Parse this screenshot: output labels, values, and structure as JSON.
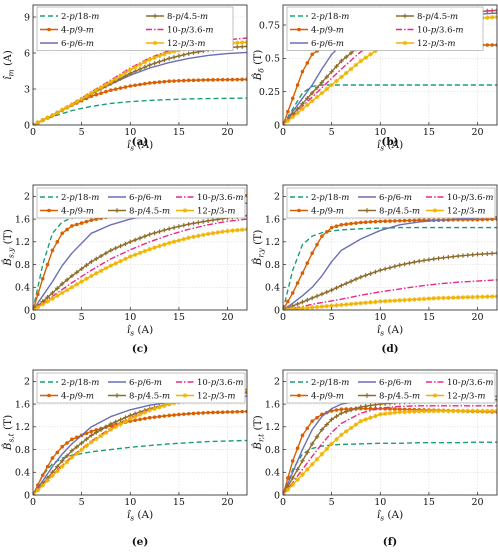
{
  "figure": {
    "colors": {
      "c2": "#1a9e77",
      "c4": "#d95f02",
      "c6": "#6a6fb8",
      "c8": "#8c6d2c",
      "c10": "#e7298a",
      "c12": "#f0b400"
    },
    "series_styles": {
      "2-p/18-m": {
        "color": "#1a9e77",
        "dash": "dashed",
        "marker": "none"
      },
      "4-p/9-m": {
        "color": "#d95f02",
        "dash": "solid",
        "marker": "dot"
      },
      "6-p/6-m": {
        "color": "#6a6fb8",
        "dash": "solid",
        "marker": "none"
      },
      "8-p/4.5-m": {
        "color": "#8c6d2c",
        "dash": "solid",
        "marker": "plus"
      },
      "10-p/3.6-m": {
        "color": "#e7298a",
        "dash": "dashdot",
        "marker": "none"
      },
      "12-p/3-m": {
        "color": "#f0b400",
        "dash": "solid",
        "marker": "star"
      }
    }
  },
  "chart_data": [
    {
      "panel": "(a)",
      "type": "line",
      "xlabel": "î_s (A)",
      "ylabel": "î_m (A)",
      "xlim": [
        0,
        22
      ],
      "ylim": [
        0,
        10
      ],
      "xticks": [
        "0",
        "5",
        "10",
        "15",
        "20"
      ],
      "yticks": [
        "0",
        "3",
        "6",
        "9"
      ],
      "ytick_values": [
        0,
        3,
        6,
        9
      ],
      "grid": true,
      "legend": {
        "position": "top",
        "columns": 2,
        "entries": [
          "2-p/18-m",
          "8-p/4.5-m",
          "4-p/9-m",
          "10-p/3.6-m",
          "6-p/6-m",
          "12-p/3-m"
        ]
      },
      "x": [
        0,
        2,
        4,
        6,
        8,
        10,
        12,
        14,
        16,
        18,
        20,
        22
      ],
      "series": [
        {
          "name": "2-p/18-m",
          "values": [
            0,
            0.7,
            1.2,
            1.55,
            1.8,
            1.95,
            2.05,
            2.12,
            2.17,
            2.2,
            2.22,
            2.24
          ]
        },
        {
          "name": "4-p/9-m",
          "values": [
            0,
            0.8,
            1.65,
            2.4,
            2.9,
            3.25,
            3.5,
            3.65,
            3.72,
            3.76,
            3.78,
            3.8
          ]
        },
        {
          "name": "6-p/6-m",
          "values": [
            0,
            0.8,
            1.7,
            2.6,
            3.4,
            4.15,
            4.75,
            5.2,
            5.55,
            5.8,
            5.95,
            6.05
          ]
        },
        {
          "name": "8-p/4.5-m",
          "values": [
            0,
            0.8,
            1.7,
            2.6,
            3.45,
            4.3,
            5.0,
            5.55,
            5.95,
            6.25,
            6.45,
            6.55
          ]
        },
        {
          "name": "10-p/3.6-m",
          "values": [
            0,
            0.8,
            1.75,
            2.75,
            3.75,
            4.75,
            5.6,
            6.2,
            6.6,
            6.9,
            7.1,
            7.25
          ]
        },
        {
          "name": "12-p/3-m",
          "values": [
            0,
            0.8,
            1.7,
            2.65,
            3.6,
            4.6,
            5.45,
            6.05,
            6.4,
            6.65,
            6.8,
            6.9
          ]
        }
      ]
    },
    {
      "panel": "(b)",
      "type": "line",
      "xlabel": "î_s (A)",
      "ylabel": "B̂_δ (T)",
      "xlim": [
        0,
        22
      ],
      "ylim": [
        0,
        0.9
      ],
      "xticks": [
        "0",
        "5",
        "10",
        "15",
        "20"
      ],
      "yticks": [
        "0",
        "0.25",
        "0.5",
        "0.75"
      ],
      "ytick_values": [
        0,
        0.25,
        0.5,
        0.75
      ],
      "grid": true,
      "legend": {
        "position": "top",
        "columns": 2,
        "entries": [
          "2-p/18-m",
          "8-p/4.5-m",
          "4-p/9-m",
          "10-p/3.6-m",
          "6-p/6-m",
          "12-p/3-m"
        ]
      },
      "x": [
        0,
        1,
        2,
        3,
        4,
        5,
        6,
        8,
        10,
        12,
        14,
        16,
        18,
        20,
        22
      ],
      "series": [
        {
          "name": "2-p/18-m",
          "values": [
            0,
            0.12,
            0.24,
            0.29,
            0.3,
            0.3,
            0.3,
            0.3,
            0.3,
            0.3,
            0.3,
            0.3,
            0.3,
            0.3,
            0.3
          ]
        },
        {
          "name": "4-p/9-m",
          "values": [
            0,
            0.2,
            0.4,
            0.53,
            0.58,
            0.595,
            0.6,
            0.6,
            0.6,
            0.6,
            0.6,
            0.6,
            0.6,
            0.6,
            0.6
          ]
        },
        {
          "name": "6-p/6-m",
          "values": [
            0,
            0.1,
            0.2,
            0.3,
            0.42,
            0.53,
            0.6,
            0.68,
            0.72,
            0.75,
            0.78,
            0.8,
            0.82,
            0.83,
            0.84
          ]
        },
        {
          "name": "8-p/4.5-m",
          "values": [
            0,
            0.08,
            0.16,
            0.24,
            0.32,
            0.4,
            0.48,
            0.6,
            0.68,
            0.73,
            0.77,
            0.8,
            0.83,
            0.85,
            0.86
          ]
        },
        {
          "name": "10-p/3.6-m",
          "values": [
            0,
            0.07,
            0.14,
            0.21,
            0.28,
            0.35,
            0.42,
            0.55,
            0.65,
            0.72,
            0.77,
            0.8,
            0.83,
            0.85,
            0.86
          ]
        },
        {
          "name": "12-p/3-m",
          "values": [
            0,
            0.06,
            0.12,
            0.18,
            0.24,
            0.3,
            0.36,
            0.48,
            0.58,
            0.65,
            0.71,
            0.75,
            0.78,
            0.8,
            0.81
          ]
        }
      ]
    },
    {
      "panel": "(c)",
      "type": "line",
      "xlabel": "î_s (A)",
      "ylabel": "B̂_s,y (T)",
      "xlim": [
        0,
        22
      ],
      "ylim": [
        0,
        2.2
      ],
      "xticks": [
        "0",
        "5",
        "10",
        "15",
        "20"
      ],
      "yticks": [
        "0",
        "0.4",
        "0.8",
        "1.2",
        "1.6",
        "2"
      ],
      "ytick_values": [
        0,
        0.4,
        0.8,
        1.2,
        1.6,
        2
      ],
      "grid": true,
      "legend": {
        "position": "top",
        "columns": 3,
        "entries": [
          "2-p/18-m",
          "6-p/6-m",
          "10-p/3.6-m",
          "4-p/9-m",
          "8-p/4.5-m",
          "12-p/3-m"
        ]
      },
      "x": [
        0,
        1,
        2,
        3,
        4,
        6,
        8,
        10,
        12,
        14,
        16,
        18,
        20,
        22
      ],
      "series": [
        {
          "name": "2-p/18-m",
          "values": [
            0,
            0.8,
            1.35,
            1.55,
            1.62,
            1.7,
            1.76,
            1.82,
            1.87,
            1.91,
            1.95,
            1.98,
            2.01,
            2.03
          ]
        },
        {
          "name": "4-p/9-m",
          "values": [
            0,
            0.55,
            1.05,
            1.35,
            1.48,
            1.58,
            1.65,
            1.72,
            1.78,
            1.84,
            1.89,
            1.93,
            1.97,
            2.01
          ]
        },
        {
          "name": "6-p/6-m",
          "values": [
            0,
            0.25,
            0.5,
            0.78,
            1.0,
            1.35,
            1.5,
            1.6,
            1.67,
            1.73,
            1.78,
            1.82,
            1.85,
            1.88
          ]
        },
        {
          "name": "8-p/4.5-m",
          "values": [
            0,
            0.15,
            0.3,
            0.46,
            0.6,
            0.85,
            1.05,
            1.2,
            1.33,
            1.43,
            1.51,
            1.57,
            1.62,
            1.66
          ]
        },
        {
          "name": "10-p/3.6-m",
          "values": [
            0,
            0.12,
            0.24,
            0.36,
            0.48,
            0.7,
            0.9,
            1.06,
            1.2,
            1.32,
            1.42,
            1.5,
            1.56,
            1.6
          ]
        },
        {
          "name": "12-p/3-m",
          "values": [
            0,
            0.1,
            0.2,
            0.3,
            0.4,
            0.6,
            0.78,
            0.94,
            1.07,
            1.18,
            1.27,
            1.34,
            1.39,
            1.42
          ]
        }
      ]
    },
    {
      "panel": "(d)",
      "type": "line",
      "xlabel": "î_s (A)",
      "ylabel": "B̂_r,y (T)",
      "xlim": [
        0,
        22
      ],
      "ylim": [
        0,
        2.2
      ],
      "xticks": [
        "0",
        "5",
        "10",
        "15",
        "20"
      ],
      "yticks": [
        "0",
        "0.4",
        "0.8",
        "1.2",
        "1.6",
        "2"
      ],
      "ytick_values": [
        0,
        0.4,
        0.8,
        1.2,
        1.6,
        2
      ],
      "grid": true,
      "legend": {
        "position": "top",
        "columns": 3,
        "entries": [
          "2-p/18-m",
          "6-p/6-m",
          "10-p/3.6-m",
          "4-p/9-m",
          "8-p/4.5-m",
          "12-p/3-m"
        ]
      },
      "x": [
        0,
        1,
        2,
        3,
        4,
        5,
        6,
        8,
        10,
        12,
        14,
        16,
        18,
        20,
        22
      ],
      "series": [
        {
          "name": "2-p/18-m",
          "values": [
            0,
            0.7,
            1.15,
            1.3,
            1.36,
            1.39,
            1.41,
            1.43,
            1.44,
            1.45,
            1.45,
            1.45,
            1.45,
            1.45,
            1.45
          ]
        },
        {
          "name": "4-p/9-m",
          "values": [
            0,
            0.3,
            0.65,
            1.0,
            1.3,
            1.45,
            1.5,
            1.54,
            1.56,
            1.57,
            1.58,
            1.58,
            1.59,
            1.59,
            1.6
          ]
        },
        {
          "name": "6-p/6-m",
          "values": [
            0,
            0.12,
            0.25,
            0.4,
            0.6,
            0.85,
            1.05,
            1.25,
            1.4,
            1.5,
            1.55,
            1.58,
            1.6,
            1.62,
            1.64
          ]
        },
        {
          "name": "8-p/4.5-m",
          "values": [
            0,
            0.07,
            0.14,
            0.21,
            0.28,
            0.35,
            0.43,
            0.58,
            0.7,
            0.79,
            0.86,
            0.91,
            0.95,
            0.98,
            1.0
          ]
        },
        {
          "name": "10-p/3.6-m",
          "values": [
            0,
            0.03,
            0.06,
            0.1,
            0.13,
            0.16,
            0.19,
            0.26,
            0.32,
            0.37,
            0.42,
            0.46,
            0.49,
            0.51,
            0.53
          ]
        },
        {
          "name": "12-p/3-m",
          "values": [
            0,
            0.015,
            0.03,
            0.045,
            0.06,
            0.075,
            0.09,
            0.12,
            0.15,
            0.17,
            0.19,
            0.21,
            0.22,
            0.23,
            0.24
          ]
        }
      ]
    },
    {
      "panel": "(e)",
      "type": "line",
      "xlabel": "î_s (A)",
      "ylabel": "B̂_s,t (T)",
      "xlim": [
        0,
        22
      ],
      "ylim": [
        0,
        2.2
      ],
      "xticks": [
        "0",
        "5",
        "10",
        "15",
        "20"
      ],
      "yticks": [
        "0",
        "0.4",
        "0.8",
        "1.2",
        "1.6",
        "2"
      ],
      "ytick_values": [
        0,
        0.4,
        0.8,
        1.2,
        1.6,
        2
      ],
      "grid": true,
      "legend": {
        "position": "top",
        "columns": 3,
        "entries": [
          "2-p/18-m",
          "6-p/6-m",
          "10-p/3.6-m",
          "4-p/9-m",
          "8-p/4.5-m",
          "12-p/3-m"
        ]
      },
      "x": [
        0,
        1,
        2,
        3,
        4,
        6,
        8,
        10,
        12,
        14,
        16,
        18,
        20,
        22
      ],
      "series": [
        {
          "name": "2-p/18-m",
          "values": [
            0,
            0.35,
            0.55,
            0.65,
            0.7,
            0.76,
            0.8,
            0.84,
            0.87,
            0.9,
            0.92,
            0.94,
            0.95,
            0.96
          ]
        },
        {
          "name": "4-p/9-m",
          "values": [
            0,
            0.35,
            0.65,
            0.85,
            0.98,
            1.12,
            1.22,
            1.3,
            1.36,
            1.4,
            1.43,
            1.45,
            1.46,
            1.47
          ]
        },
        {
          "name": "6-p/6-m",
          "values": [
            0,
            0.25,
            0.5,
            0.72,
            0.9,
            1.2,
            1.38,
            1.5,
            1.58,
            1.63,
            1.67,
            1.7,
            1.72,
            1.74
          ]
        },
        {
          "name": "8-p/4.5-m",
          "values": [
            0,
            0.2,
            0.4,
            0.6,
            0.78,
            1.05,
            1.25,
            1.4,
            1.52,
            1.6,
            1.67,
            1.72,
            1.77,
            1.8
          ]
        },
        {
          "name": "10-p/3.6-m",
          "values": [
            0,
            0.18,
            0.35,
            0.52,
            0.68,
            0.95,
            1.18,
            1.36,
            1.5,
            1.6,
            1.68,
            1.74,
            1.79,
            1.83
          ]
        },
        {
          "name": "12-p/3-m",
          "values": [
            0,
            0.17,
            0.34,
            0.5,
            0.66,
            0.93,
            1.15,
            1.34,
            1.49,
            1.6,
            1.69,
            1.76,
            1.81,
            1.85
          ]
        }
      ]
    },
    {
      "panel": "(f)",
      "type": "line",
      "xlabel": "î_s (A)",
      "ylabel": "B̂_r,t (T)",
      "xlim": [
        0,
        22
      ],
      "ylim": [
        0,
        2.2
      ],
      "xticks": [
        "0",
        "5",
        "10",
        "15",
        "20"
      ],
      "yticks": [
        "0",
        "0.4",
        "0.8",
        "1.2",
        "1.6",
        "2"
      ],
      "ytick_values": [
        0,
        0.4,
        0.8,
        1.2,
        1.6,
        2
      ],
      "grid": true,
      "legend": {
        "position": "top",
        "columns": 3,
        "entries": [
          "2-p/18-m",
          "6-p/6-m",
          "10-p/3.6-m",
          "4-p/9-m",
          "8-p/4.5-m",
          "12-p/3-m"
        ]
      },
      "x": [
        0,
        1,
        2,
        3,
        4,
        5,
        6,
        8,
        10,
        12,
        14,
        16,
        18,
        20,
        22
      ],
      "series": [
        {
          "name": "2-p/18-m",
          "values": [
            0,
            0.45,
            0.72,
            0.82,
            0.86,
            0.88,
            0.89,
            0.9,
            0.91,
            0.91,
            0.92,
            0.92,
            0.92,
            0.93,
            0.93
          ]
        },
        {
          "name": "4-p/9-m",
          "values": [
            0,
            0.6,
            1.05,
            1.3,
            1.42,
            1.48,
            1.51,
            1.52,
            1.52,
            1.51,
            1.5,
            1.49,
            1.48,
            1.47,
            1.46
          ]
        },
        {
          "name": "6-p/6-m",
          "values": [
            0,
            0.4,
            0.8,
            1.15,
            1.38,
            1.52,
            1.6,
            1.66,
            1.69,
            1.71,
            1.72,
            1.72,
            1.73,
            1.73,
            1.74
          ]
        },
        {
          "name": "8-p/4.5-m",
          "values": [
            0,
            0.3,
            0.6,
            0.9,
            1.15,
            1.33,
            1.44,
            1.55,
            1.6,
            1.63,
            1.65,
            1.66,
            1.67,
            1.67,
            1.68
          ]
        },
        {
          "name": "10-p/3.6-m",
          "values": [
            0,
            0.22,
            0.45,
            0.68,
            0.9,
            1.1,
            1.26,
            1.44,
            1.53,
            1.56,
            1.57,
            1.57,
            1.57,
            1.57,
            1.57
          ]
        },
        {
          "name": "12-p/3-m",
          "values": [
            0,
            0.18,
            0.36,
            0.54,
            0.72,
            0.9,
            1.06,
            1.3,
            1.42,
            1.46,
            1.47,
            1.48,
            1.48,
            1.48,
            1.48
          ]
        }
      ]
    }
  ]
}
